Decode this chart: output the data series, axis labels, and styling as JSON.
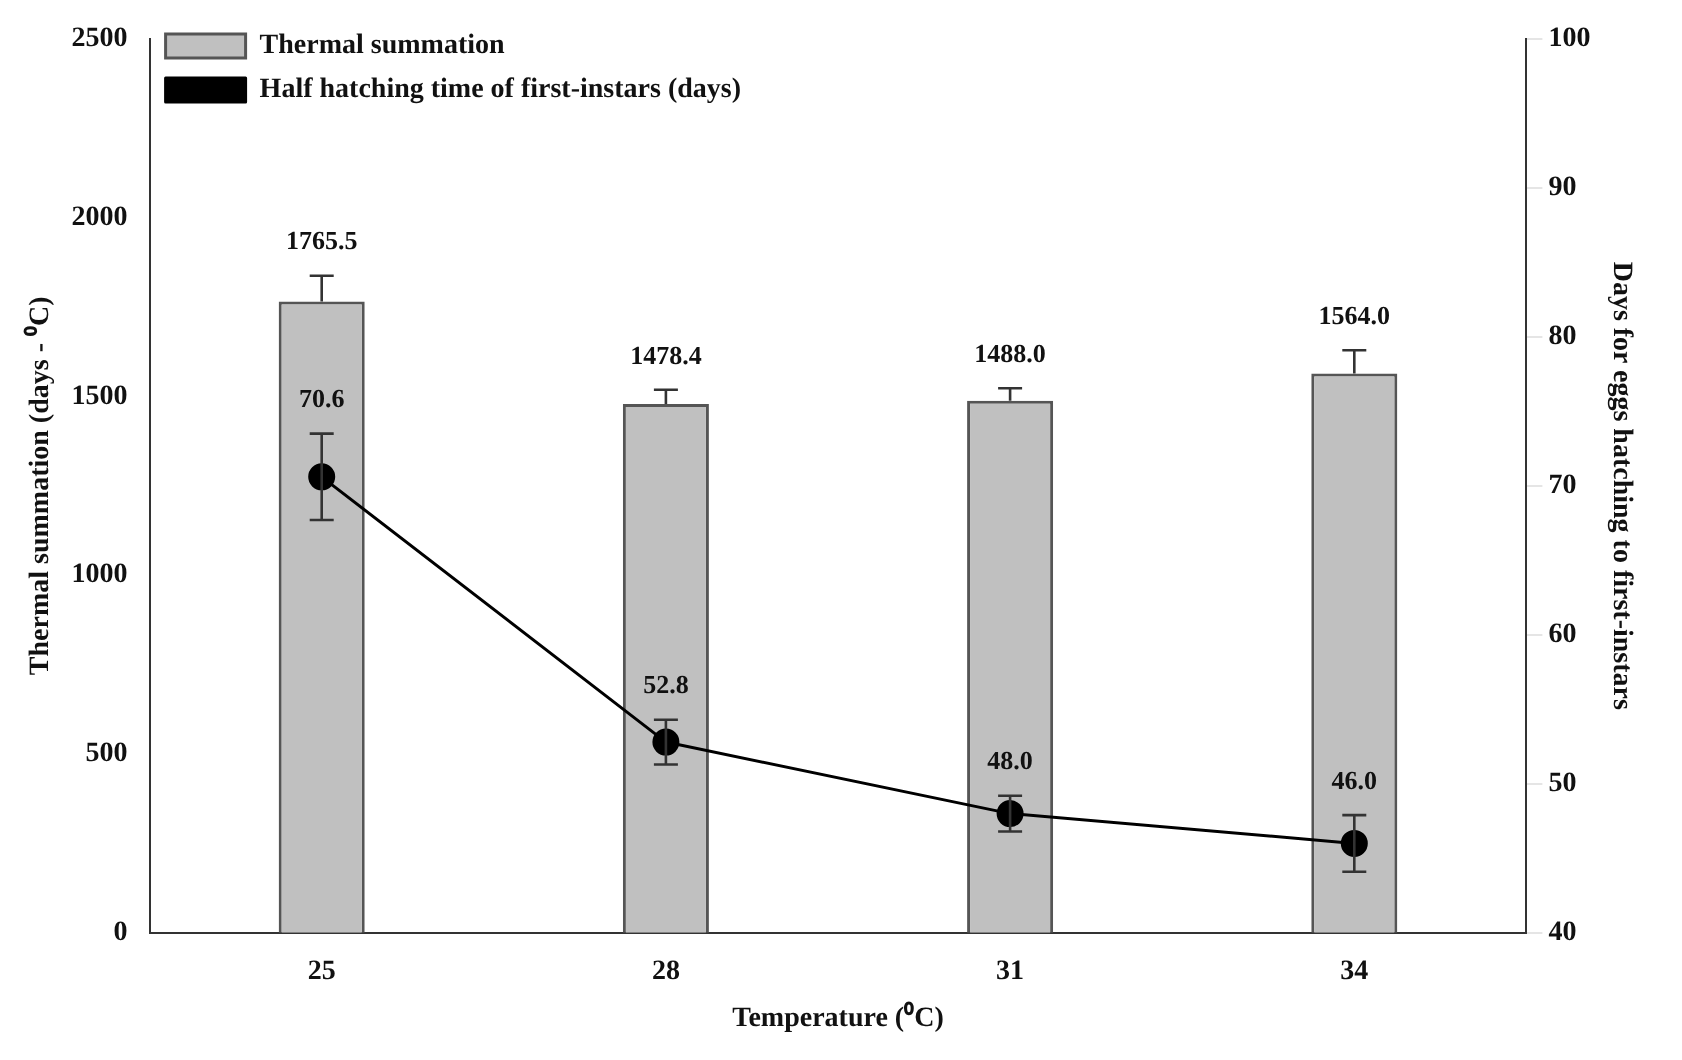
{
  "chart_data": {
    "type": "bar",
    "xlabel": "Temperature (⁰C)",
    "ylabel": "Thermal summation (days - ⁰C)",
    "y2label": "Days for eggs hatching to first-instars",
    "categories": [
      "25",
      "28",
      "31",
      "34"
    ],
    "series": [
      {
        "name": "Thermal summation",
        "color": "#c0c0c0",
        "values": [
          1765.5,
          1478.4,
          1488.0,
          1564.0
        ],
        "value_labels": [
          "1765.5",
          "1478.4",
          "1488.0",
          "1564.0"
        ],
        "errors": [
          72,
          40,
          35,
          65
        ]
      },
      {
        "name": "Half hatching time of first-instars (days)",
        "type": "line",
        "axis": "y2",
        "color": "#000000",
        "values": [
          70.6,
          52.8,
          48.0,
          46.0
        ],
        "value_labels": [
          "70.6",
          "52.8",
          "48.0",
          "46.0"
        ],
        "errors": [
          2.9,
          1.5,
          1.2,
          1.9
        ]
      }
    ],
    "ylim": [
      0,
      2500
    ],
    "yticks": [
      0,
      500,
      1000,
      1500,
      2000,
      2500
    ],
    "y2lim": [
      40,
      100
    ],
    "y2ticks": [
      40,
      50,
      60,
      70,
      80,
      90,
      100
    ],
    "grid": false,
    "legend": "top left",
    "marker": "circle",
    "line_style": "solid"
  }
}
